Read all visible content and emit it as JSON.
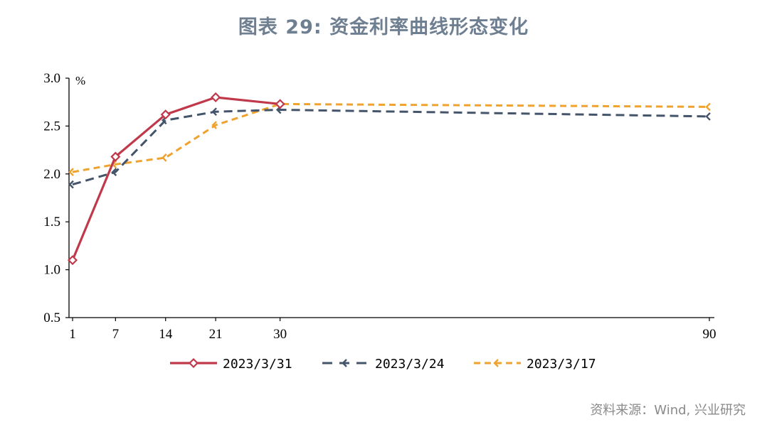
{
  "chart_data": {
    "type": "line",
    "title": "图表 29: 资金利率曲线形态变化",
    "ylabel": "%",
    "xlabel": "",
    "x": [
      1,
      7,
      14,
      21,
      30,
      90
    ],
    "x_tick_labels": [
      "1",
      "7",
      "14",
      "21",
      "30",
      "90"
    ],
    "ylim": [
      0.5,
      3.0
    ],
    "y_ticks": [
      "0.5",
      "1.0",
      "1.5",
      "2.0",
      "2.5",
      "3.0"
    ],
    "grid": false,
    "legend_position": "bottom",
    "series": [
      {
        "name": "2023/3/31",
        "color": "#c0394b",
        "style": "solid",
        "marker": "diamond",
        "values": [
          1.1,
          2.18,
          2.62,
          2.8,
          2.73,
          null
        ]
      },
      {
        "name": "2023/3/24",
        "color": "#44546a",
        "style": "dashed",
        "marker": "chevron",
        "values": [
          1.89,
          2.02,
          2.56,
          2.65,
          2.67,
          2.6
        ]
      },
      {
        "name": "2023/3/17",
        "color": "#f0a22e",
        "style": "dashed",
        "marker": "chevron",
        "values": [
          2.02,
          2.1,
          2.17,
          2.51,
          2.73,
          2.7
        ]
      }
    ]
  },
  "source": "资料来源：Wind, 兴业研究"
}
